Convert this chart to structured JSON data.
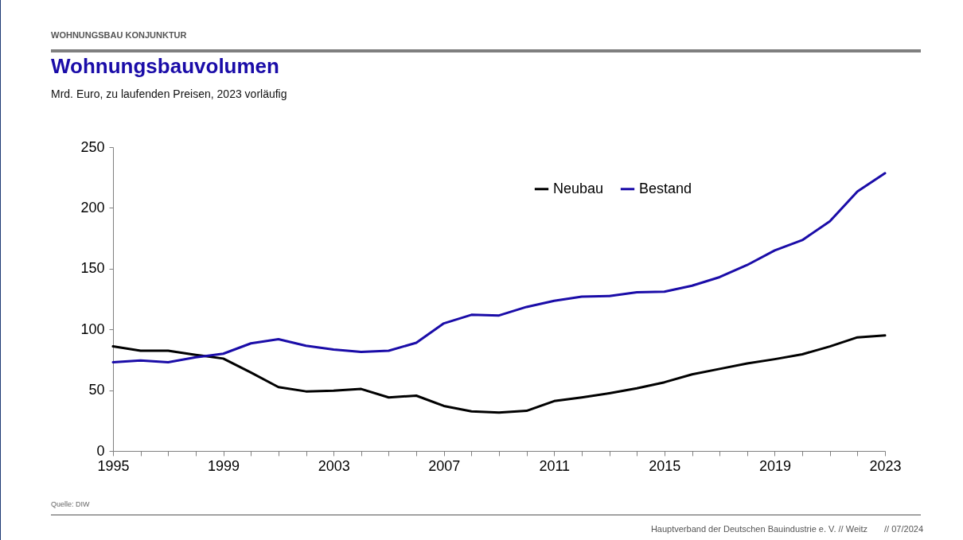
{
  "chart_data": {
    "type": "line",
    "title": "Wohnungsbauvolumen",
    "subtitle": "Mrd. Euro, zu laufenden Preisen, 2023 vorläufig",
    "annotations": [
      "WOHNUNGSBAU KONJUNKTUR",
      "Quelle: DIW",
      "Hauptverband der Deutschen Bauindustrie e. V. // Weitz",
      "// 07/2024"
    ],
    "x": [
      1995,
      1996,
      1997,
      1998,
      1999,
      2000,
      2001,
      2002,
      2003,
      2004,
      2005,
      2006,
      2007,
      2008,
      2009,
      2010,
      2011,
      2012,
      2013,
      2014,
      2015,
      2016,
      2017,
      2018,
      2019,
      2020,
      2021,
      2022,
      2023
    ],
    "series": [
      {
        "name": "Neubau",
        "color": "#000000",
        "values": [
          86,
          82.5,
          82.5,
          79,
          76,
          64.5,
          52.5,
          49,
          49.5,
          51,
          44,
          45.5,
          37,
          32.5,
          31.5,
          33,
          41,
          44,
          47.5,
          51.5,
          56.5,
          63,
          67.5,
          72,
          75.5,
          79.5,
          86,
          93.5,
          95
        ]
      },
      {
        "name": "Bestand",
        "color": "#1a0ca8",
        "values": [
          73,
          74.5,
          73,
          77,
          80,
          88.5,
          92,
          86.5,
          83.5,
          81.5,
          82.5,
          89,
          105,
          112,
          111.5,
          118.5,
          123.5,
          127,
          127.5,
          130.5,
          131,
          136,
          143,
          153,
          165,
          173.5,
          189,
          213.5,
          228.5
        ]
      }
    ],
    "xlim": [
      1995,
      2023
    ],
    "xticks": [
      1995,
      {
        "value": 1996,
        "label": null
      },
      {
        "value": 1997,
        "label": null
      },
      {
        "value": 1998,
        "label": null
      },
      1999,
      {
        "value": 2000,
        "label": null
      },
      {
        "value": 2001,
        "label": null
      },
      {
        "value": 2002,
        "label": null
      },
      2003,
      {
        "value": 2004,
        "label": null
      },
      {
        "value": 2005,
        "label": null
      },
      {
        "value": 2006,
        "label": null
      },
      2007,
      {
        "value": 2008,
        "label": null
      },
      {
        "value": 2009,
        "label": null
      },
      {
        "value": 2010,
        "label": null
      },
      2011,
      {
        "value": 2012,
        "label": null
      },
      {
        "value": 2013,
        "label": null
      },
      {
        "value": 2014,
        "label": null
      },
      2015,
      {
        "value": 2016,
        "label": null
      },
      {
        "value": 2017,
        "label": null
      },
      {
        "value": 2018,
        "label": null
      },
      2019,
      {
        "value": 2020,
        "label": null
      },
      {
        "value": 2021,
        "label": null
      },
      {
        "value": 2022,
        "label": null
      },
      2023
    ],
    "ylim": [
      0,
      250
    ],
    "yticks": [
      0,
      50,
      100,
      150,
      200,
      250
    ],
    "grid": false,
    "legend": "top",
    "marker": "none",
    "line_style": "solid"
  }
}
